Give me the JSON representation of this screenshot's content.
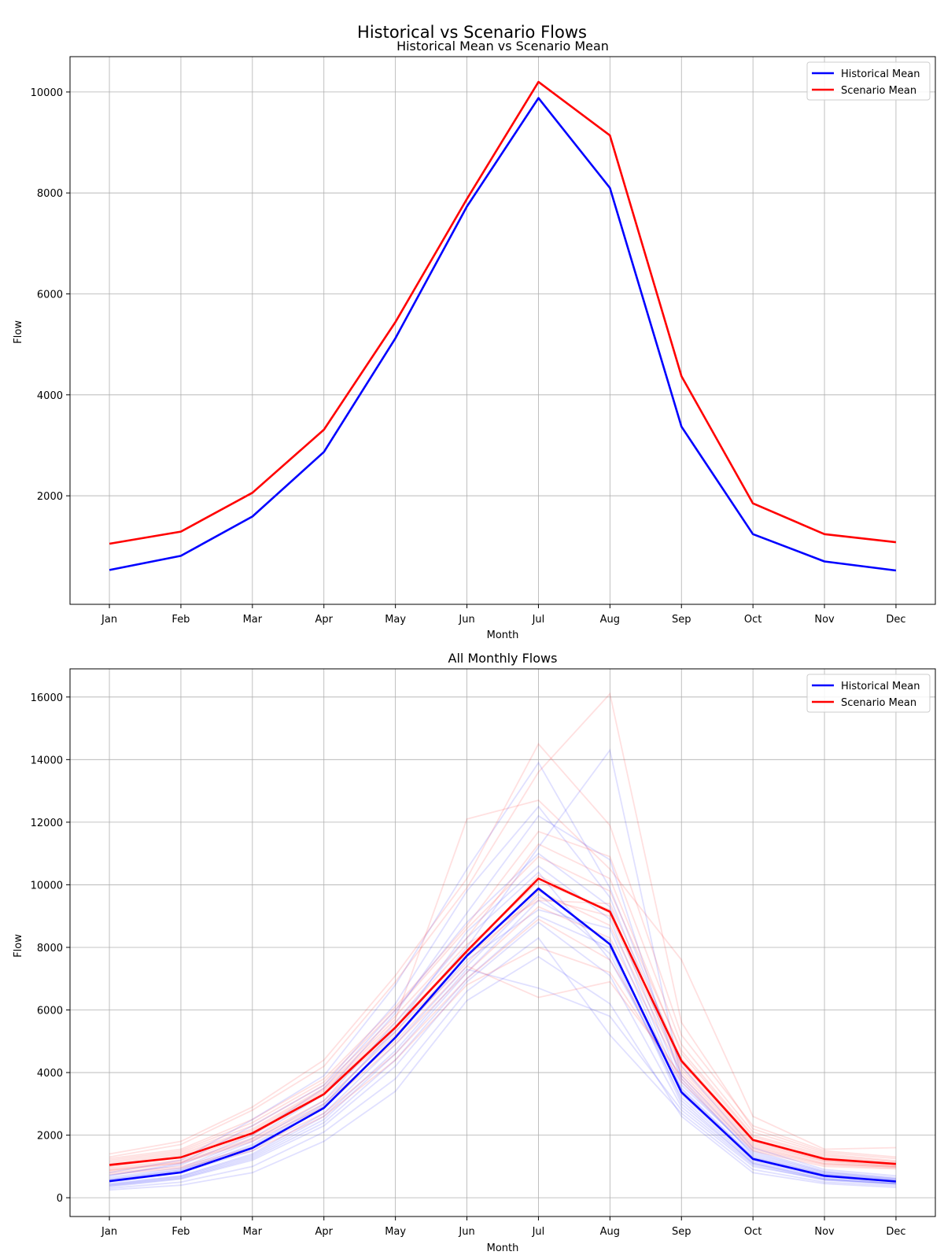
{
  "figure": {
    "suptitle": "Historical vs Scenario Flows"
  },
  "chart_data": [
    {
      "type": "line",
      "title": "Historical Mean vs Scenario Mean",
      "xlabel": "Month",
      "ylabel": "Flow",
      "categories": [
        "Jan",
        "Feb",
        "Mar",
        "Apr",
        "May",
        "Jun",
        "Jul",
        "Aug",
        "Sep",
        "Oct",
        "Nov",
        "Dec"
      ],
      "ylim": [
        -150,
        10700
      ],
      "yticks": [
        2000,
        4000,
        6000,
        8000,
        10000
      ],
      "grid": true,
      "legend_position": "top-right",
      "series": [
        {
          "name": "Historical Mean",
          "color": "#0000ff",
          "values": [
            530,
            810,
            1590,
            2870,
            5120,
            7730,
            9880,
            8100,
            3370,
            1240,
            700,
            520
          ]
        },
        {
          "name": "Scenario Mean",
          "color": "#ff0000",
          "values": [
            1050,
            1290,
            2060,
            3310,
            5440,
            7880,
            10200,
            9140,
            4370,
            1850,
            1240,
            1080
          ]
        }
      ]
    },
    {
      "type": "line",
      "title": "All Monthly Flows",
      "xlabel": "Month",
      "ylabel": "Flow",
      "categories": [
        "Jan",
        "Feb",
        "Mar",
        "Apr",
        "May",
        "Jun",
        "Jul",
        "Aug",
        "Sep",
        "Oct",
        "Nov",
        "Dec"
      ],
      "ylim": [
        -600,
        16900
      ],
      "yticks": [
        0,
        2000,
        4000,
        6000,
        8000,
        10000,
        12000,
        14000,
        16000
      ],
      "grid": true,
      "legend_position": "top-right",
      "series": [
        {
          "name": "Historical Mean",
          "color": "#0000ff",
          "values": [
            530,
            810,
            1590,
            2870,
            5120,
            7730,
            9880,
            8100,
            3370,
            1240,
            700,
            520
          ]
        },
        {
          "name": "Scenario Mean",
          "color": "#ff0000",
          "values": [
            1050,
            1290,
            2060,
            3310,
            5440,
            7880,
            10200,
            9140,
            4370,
            1850,
            1240,
            1080
          ]
        }
      ],
      "background_traces": {
        "historical_color": "#0000ff",
        "scenario_color": "#ff0000",
        "opacity": 0.12,
        "historical": [
          [
            400,
            650,
            1300,
            2500,
            4600,
            7200,
            9500,
            8200,
            3100,
            1100,
            600,
            450
          ],
          [
            600,
            900,
            1800,
            3100,
            5600,
            8300,
            10400,
            7600,
            3500,
            1300,
            750,
            560
          ],
          [
            300,
            500,
            1000,
            2100,
            3800,
            6600,
            8300,
            5200,
            2700,
            900,
            500,
            380
          ],
          [
            700,
            1100,
            2300,
            3600,
            6200,
            9800,
            12500,
            9600,
            3900,
            1500,
            850,
            640
          ],
          [
            500,
            800,
            1500,
            2900,
            5100,
            7600,
            9200,
            8600,
            3300,
            1200,
            680,
            520
          ],
          [
            350,
            600,
            1200,
            2300,
            4200,
            6900,
            8800,
            7100,
            2900,
            1050,
            560,
            430
          ],
          [
            800,
            1200,
            2500,
            3900,
            6800,
            10500,
            13900,
            9900,
            4200,
            1600,
            900,
            700
          ],
          [
            450,
            700,
            1400,
            2700,
            4900,
            7400,
            9700,
            7800,
            3200,
            1150,
            640,
            480
          ],
          [
            550,
            850,
            1700,
            3000,
            5300,
            8000,
            11200,
            14300,
            3800,
            1350,
            760,
            580
          ],
          [
            250,
            400,
            800,
            1800,
            3400,
            6300,
            7700,
            6200,
            2600,
            800,
            450,
            330
          ],
          [
            650,
            950,
            1900,
            3300,
            5900,
            9100,
            12200,
            10800,
            3700,
            1400,
            800,
            600
          ],
          [
            380,
            620,
            1250,
            2400,
            4400,
            7000,
            9000,
            8000,
            3000,
            1100,
            600,
            460
          ],
          [
            720,
            1050,
            2000,
            3500,
            6000,
            8800,
            11000,
            9300,
            3600,
            1450,
            820,
            610
          ],
          [
            420,
            680,
            1350,
            2600,
            4700,
            7300,
            6700,
            5800,
            2800,
            1000,
            580,
            440
          ],
          [
            580,
            880,
            1650,
            2950,
            5400,
            8500,
            10600,
            8900,
            3450,
            1280,
            720,
            540
          ]
        ],
        "scenario": [
          [
            900,
            1150,
            1900,
            3100,
            5200,
            7500,
            9800,
            8700,
            4100,
            1700,
            1150,
            1000
          ],
          [
            1200,
            1500,
            2400,
            3700,
            6000,
            8600,
            10900,
            9800,
            4700,
            2000,
            1350,
            1150
          ],
          [
            800,
            1000,
            1600,
            2700,
            4600,
            7000,
            8900,
            7600,
            3800,
            1550,
            1050,
            950
          ],
          [
            1400,
            1800,
            2900,
            4400,
            7100,
            10200,
            14500,
            11900,
            5200,
            2300,
            1500,
            1300
          ],
          [
            1000,
            1300,
            2100,
            3400,
            5500,
            7900,
            10100,
            9200,
            4300,
            1800,
            1200,
            1050
          ],
          [
            850,
            1100,
            1800,
            2900,
            4900,
            7200,
            9300,
            8300,
            4000,
            1650,
            1100,
            980
          ],
          [
            1300,
            1700,
            2800,
            4200,
            6900,
            9900,
            13600,
            16100,
            5600,
            2200,
            1450,
            1250
          ],
          [
            950,
            1200,
            2000,
            3300,
            5300,
            7700,
            9600,
            9000,
            4200,
            1750,
            1180,
            1020
          ],
          [
            1150,
            1450,
            2300,
            3600,
            5800,
            8300,
            11300,
            10200,
            4600,
            1950,
            1300,
            1120
          ],
          [
            750,
            950,
            1500,
            2600,
            4400,
            6800,
            8000,
            7200,
            3700,
            1500,
            1000,
            920
          ],
          [
            1100,
            1400,
            2200,
            3500,
            5700,
            12100,
            12700,
            10500,
            7600,
            2600,
            1550,
            1600
          ],
          [
            1050,
            1350,
            2150,
            3450,
            5600,
            8100,
            9500,
            9400,
            4450,
            1880,
            1260,
            1090
          ],
          [
            1250,
            1550,
            2500,
            3800,
            6100,
            8700,
            11700,
            10900,
            4900,
            2100,
            1400,
            1180
          ],
          [
            880,
            1120,
            1850,
            3000,
            5000,
            7400,
            6400,
            6900,
            3900,
            1600,
            1080,
            990
          ],
          [
            1020,
            1280,
            2050,
            3350,
            5450,
            7800,
            10300,
            9100,
            4350,
            1820,
            1230,
            1070
          ]
        ]
      }
    }
  ]
}
